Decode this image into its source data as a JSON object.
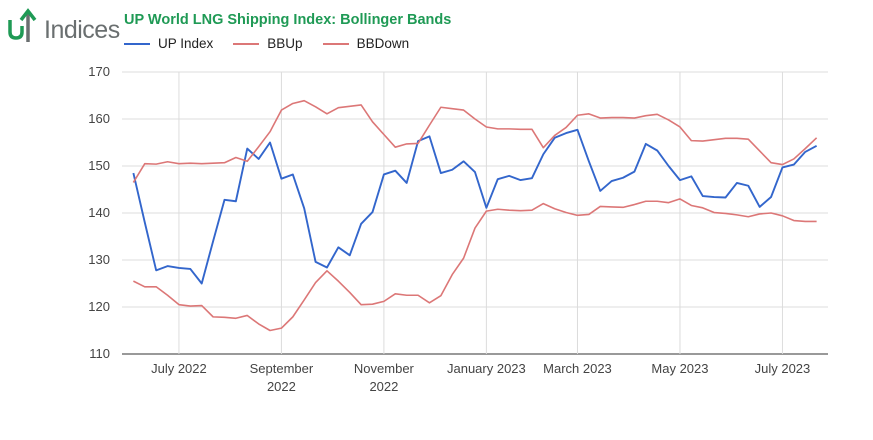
{
  "brand": {
    "logo_text": "Indices"
  },
  "chart_data": {
    "type": "line",
    "title": "UP World LNG Shipping Index: Bollinger Bands",
    "ylim": [
      110,
      170
    ],
    "yticks": [
      110,
      120,
      130,
      140,
      150,
      160,
      170
    ],
    "xlim": [
      0,
      62
    ],
    "grid": true,
    "legend_placement": "top-left",
    "xticks": [
      {
        "x": 5,
        "label": [
          "July 2022"
        ]
      },
      {
        "x": 14,
        "label": [
          "September",
          "2022"
        ]
      },
      {
        "x": 23,
        "label": [
          "November",
          "2022"
        ]
      },
      {
        "x": 32,
        "label": [
          "January 2023"
        ]
      },
      {
        "x": 40,
        "label": [
          "March 2023"
        ]
      },
      {
        "x": 49,
        "label": [
          "May 2023"
        ]
      },
      {
        "x": 58,
        "label": [
          "July 2023"
        ]
      }
    ],
    "series": [
      {
        "name": "UP Index",
        "color": "#3366cc",
        "values": [
          148.5,
          138,
          127.8,
          128.7,
          128.3,
          128.1,
          125,
          134,
          142.8,
          142.5,
          153.7,
          151.5,
          155,
          147.3,
          148.2,
          141,
          129.6,
          128.4,
          132.7,
          131,
          137.7,
          140.2,
          148.2,
          149,
          146.4,
          155.3,
          156.3,
          148.5,
          149.2,
          151,
          148.7,
          141.1,
          147.2,
          147.9,
          147,
          147.4,
          152.5,
          156,
          157,
          157.7,
          151,
          144.7,
          146.8,
          147.5,
          148.8,
          154.7,
          153.3,
          150,
          147,
          147.8,
          143.6,
          143.4,
          143.3,
          146.4,
          145.8,
          141.3,
          143.4,
          149.7,
          150.3,
          153,
          154.3
        ]
      },
      {
        "name": "BBUp",
        "color": "#dc7777",
        "values": [
          146.5,
          150.5,
          150.4,
          150.9,
          150.5,
          150.6,
          150.5,
          150.6,
          150.7,
          151.8,
          151,
          154.1,
          157.3,
          161.9,
          163.3,
          163.9,
          162.6,
          161.1,
          162.4,
          162.7,
          163,
          159.4,
          156.7,
          154,
          154.7,
          154.8,
          158.7,
          162.5,
          162.2,
          161.9,
          160,
          158.3,
          157.9,
          157.9,
          157.8,
          157.8,
          153.9,
          156.5,
          158.2,
          160.8,
          161.1,
          160.2,
          160.3,
          160.3,
          160.2,
          160.7,
          161,
          159.8,
          158.3,
          155.4,
          155.3,
          155.6,
          155.9,
          155.9,
          155.7,
          153.2,
          150.7,
          150.3,
          151.5,
          153.7,
          156
        ]
      },
      {
        "name": "BBDown",
        "color": "#dc7777",
        "values": [
          125.5,
          124.3,
          124.3,
          122.5,
          120.5,
          120.2,
          120.3,
          117.9,
          117.8,
          117.6,
          118.2,
          116.4,
          115,
          115.5,
          117.9,
          121.5,
          125.2,
          127.7,
          125.5,
          123.1,
          120.5,
          120.6,
          121.2,
          122.8,
          122.5,
          122.5,
          120.9,
          122.4,
          126.9,
          130.4,
          136.8,
          140.4,
          140.8,
          140.6,
          140.5,
          140.6,
          142,
          140.9,
          140.1,
          139.5,
          139.7,
          141.4,
          141.3,
          141.2,
          141.8,
          142.5,
          142.5,
          142.2,
          143,
          141.6,
          141.1,
          140.1,
          139.9,
          139.6,
          139.2,
          139.8,
          140,
          139.4,
          138.4,
          138.2,
          138.2
        ]
      }
    ]
  }
}
